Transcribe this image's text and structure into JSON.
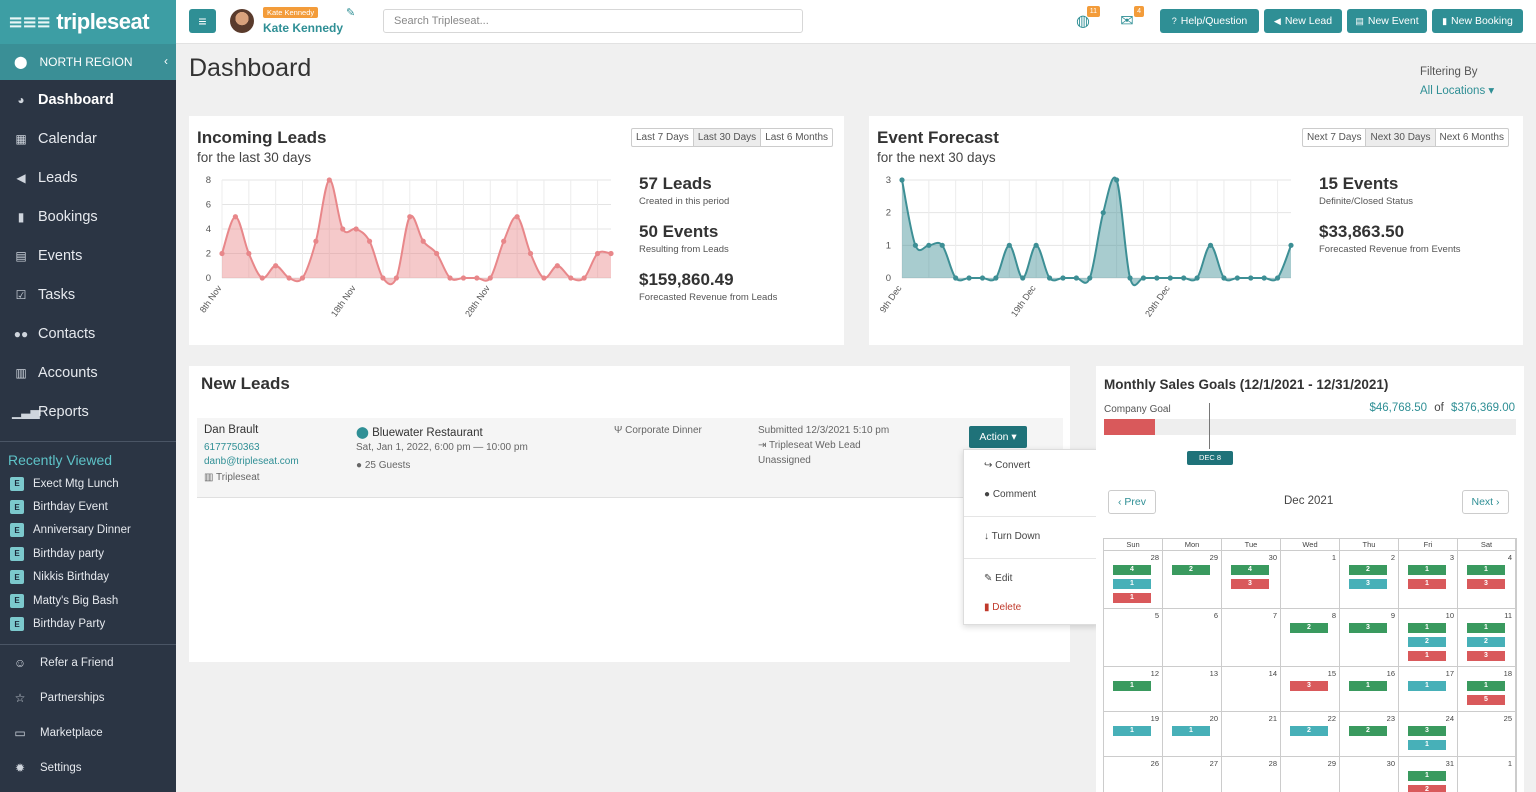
{
  "app": {
    "brand": "tripleseat",
    "logo_mark": "≡≡≡"
  },
  "sidebar": {
    "region": "NORTH REGION",
    "items": [
      {
        "label": "Dashboard",
        "icon": "dashboard-icon"
      },
      {
        "label": "Calendar",
        "icon": "calendar-icon"
      },
      {
        "label": "Leads",
        "icon": "megaphone-icon"
      },
      {
        "label": "Bookings",
        "icon": "bookmark-icon"
      },
      {
        "label": "Events",
        "icon": "list-icon"
      },
      {
        "label": "Tasks",
        "icon": "checkbox-icon"
      },
      {
        "label": "Contacts",
        "icon": "users-icon"
      },
      {
        "label": "Accounts",
        "icon": "building-icon"
      },
      {
        "label": "Reports",
        "icon": "bar-chart-icon"
      }
    ],
    "recent_title": "Recently Viewed",
    "recent_badge": "E",
    "recent": [
      "Exect Mtg Lunch",
      "Birthday Event",
      "Anniversary Dinner",
      "Birthday party",
      "Nikkis Birthday",
      "Matty's Big Bash",
      "Birthday Party"
    ],
    "footer": [
      {
        "label": "Refer a Friend",
        "icon": "smile-icon"
      },
      {
        "label": "Partnerships",
        "icon": "star-icon"
      },
      {
        "label": "Marketplace",
        "icon": "store-icon"
      },
      {
        "label": "Settings",
        "icon": "gear-icon"
      }
    ]
  },
  "topbar": {
    "user_tag": "Kate Kennedy",
    "user_name": "Kate Kennedy",
    "search_placeholder": "Search Tripleseat...",
    "notif1_count": "11",
    "notif2_count": "4",
    "buttons": {
      "help": "Help/Question",
      "new_lead": "New Lead",
      "new_event": "New Event",
      "new_booking": "New Booking"
    }
  },
  "page": {
    "title": "Dashboard",
    "filter_label": "Filtering By",
    "filter_value": "All Locations ▾"
  },
  "incoming": {
    "title": "Incoming Leads",
    "subtitle": "for the last 30 days",
    "ranges": [
      "Last 7 Days",
      "Last 30 Days",
      "Last 6 Months"
    ],
    "stats": [
      {
        "big": "57 Leads",
        "small": "Created in this period"
      },
      {
        "big": "50 Events",
        "small": "Resulting from Leads"
      },
      {
        "big": "$159,860.49",
        "small": "Forecasted Revenue from Leads"
      }
    ]
  },
  "forecast": {
    "title": "Event Forecast",
    "subtitle": "for the next 30 days",
    "ranges": [
      "Next 7 Days",
      "Next 30 Days",
      "Next 6 Months"
    ],
    "stats": [
      {
        "big": "15 Events",
        "small": "Definite/Closed Status"
      },
      {
        "big": "$33,863.50",
        "small": "Forecasted Revenue from Events"
      }
    ]
  },
  "chart_data": [
    {
      "type": "area",
      "color": "#e8878a",
      "x_tick_labels": [
        "8th Nov",
        "18th Nov",
        "28th Nov"
      ],
      "ylim": [
        0,
        8
      ],
      "yticks": [
        0,
        2,
        4,
        6,
        8
      ],
      "series": [
        {
          "values": [
            2,
            5,
            2,
            0,
            1,
            0,
            0,
            3,
            8,
            4,
            4,
            3,
            0,
            0,
            5,
            3,
            2,
            0,
            0,
            0,
            0,
            3,
            5,
            2,
            0,
            1,
            0,
            0,
            2,
            2
          ]
        }
      ]
    },
    {
      "type": "area",
      "color": "#3d8f95",
      "x_tick_labels": [
        "9th Dec",
        "19th Dec",
        "29th Dec"
      ],
      "ylim": [
        0,
        3
      ],
      "yticks": [
        0,
        1,
        2,
        3
      ],
      "series": [
        {
          "values": [
            3,
            1,
            1,
            1,
            0,
            0,
            0,
            0,
            1,
            0,
            1,
            0,
            0,
            0,
            0,
            2,
            3,
            0,
            0,
            0,
            0,
            0,
            0,
            1,
            0,
            0,
            0,
            0,
            0,
            1
          ]
        }
      ]
    }
  ],
  "new_leads": {
    "title": "New Leads",
    "lead": {
      "name": "Dan Brault",
      "phone": "6177750363",
      "email": "danb@tripleseat.com",
      "source_account": "Tripleseat",
      "location": "Bluewater Restaurant",
      "datetime": "Sat, Jan 1, 2022, 6:00 pm — 10:00 pm",
      "guests": "25 Guests",
      "event_type": "Corporate Dinner",
      "submitted": "Submitted 12/3/2021 5:10 pm",
      "channel": "Tripleseat Web Lead",
      "assigned": "Unassigned"
    },
    "action_label": "Action ▾",
    "menu": {
      "convert": "Convert",
      "comment": "Comment",
      "turn_down": "Turn Down",
      "edit": "Edit",
      "delete": "Delete"
    }
  },
  "goals": {
    "title": "Monthly Sales Goals (12/1/2021 - 12/31/2021)",
    "goal_label": "Company Goal",
    "achieved": "$46,768.50",
    "of": "of",
    "target": "$376,369.00",
    "progress_fraction": 0.124,
    "marker_label": "DEC 8",
    "calendar": {
      "prev": "Prev",
      "next": "Next",
      "month": "Dec 2021",
      "days": [
        "Sun",
        "Mon",
        "Tue",
        "Wed",
        "Thu",
        "Fri",
        "Sat"
      ],
      "weeks": [
        [
          {
            "d": "28",
            "c": [
              [
                "g",
                "4"
              ],
              [
                "b",
                "1"
              ],
              [
                "r",
                "1"
              ]
            ]
          },
          {
            "d": "29",
            "c": [
              [
                "g",
                "2"
              ]
            ]
          },
          {
            "d": "30",
            "c": [
              [
                "g",
                "4"
              ],
              [
                "r",
                "3"
              ]
            ]
          },
          {
            "d": "1",
            "c": []
          },
          {
            "d": "2",
            "c": [
              [
                "g",
                "2"
              ],
              [
                "b",
                "3"
              ]
            ]
          },
          {
            "d": "3",
            "c": [
              [
                "g",
                "1"
              ],
              [
                "r",
                "1"
              ]
            ]
          },
          {
            "d": "4",
            "c": [
              [
                "g",
                "1"
              ],
              [
                "r",
                "3"
              ]
            ]
          }
        ],
        [
          {
            "d": "5",
            "c": []
          },
          {
            "d": "6",
            "c": []
          },
          {
            "d": "7",
            "c": []
          },
          {
            "d": "8",
            "c": [
              [
                "g",
                "2"
              ]
            ]
          },
          {
            "d": "9",
            "c": [
              [
                "g",
                "3"
              ]
            ]
          },
          {
            "d": "10",
            "c": [
              [
                "g",
                "1"
              ],
              [
                "b",
                "2"
              ],
              [
                "r",
                "1"
              ]
            ]
          },
          {
            "d": "11",
            "c": [
              [
                "g",
                "1"
              ],
              [
                "b",
                "2"
              ],
              [
                "r",
                "3"
              ]
            ]
          }
        ],
        [
          {
            "d": "12",
            "c": [
              [
                "g",
                "1"
              ]
            ]
          },
          {
            "d": "13",
            "c": []
          },
          {
            "d": "14",
            "c": []
          },
          {
            "d": "15",
            "c": [
              [
                "r",
                "3"
              ]
            ]
          },
          {
            "d": "16",
            "c": [
              [
                "g",
                "1"
              ]
            ]
          },
          {
            "d": "17",
            "c": [
              [
                "b",
                "1"
              ]
            ]
          },
          {
            "d": "18",
            "c": [
              [
                "g",
                "1"
              ],
              [
                "r",
                "5"
              ]
            ]
          }
        ],
        [
          {
            "d": "19",
            "c": [
              [
                "b",
                "1"
              ]
            ]
          },
          {
            "d": "20",
            "c": [
              [
                "b",
                "1"
              ]
            ]
          },
          {
            "d": "21",
            "c": []
          },
          {
            "d": "22",
            "c": [
              [
                "b",
                "2"
              ]
            ]
          },
          {
            "d": "23",
            "c": [
              [
                "g",
                "2"
              ]
            ]
          },
          {
            "d": "24",
            "c": [
              [
                "g",
                "3"
              ],
              [
                "b",
                "1"
              ]
            ]
          },
          {
            "d": "25",
            "c": []
          }
        ],
        [
          {
            "d": "26",
            "c": []
          },
          {
            "d": "27",
            "c": []
          },
          {
            "d": "28",
            "c": []
          },
          {
            "d": "29",
            "c": []
          },
          {
            "d": "30",
            "c": []
          },
          {
            "d": "31",
            "c": [
              [
                "g",
                "1"
              ],
              [
                "r",
                "2"
              ]
            ]
          },
          {
            "d": "1",
            "c": []
          }
        ]
      ]
    }
  }
}
